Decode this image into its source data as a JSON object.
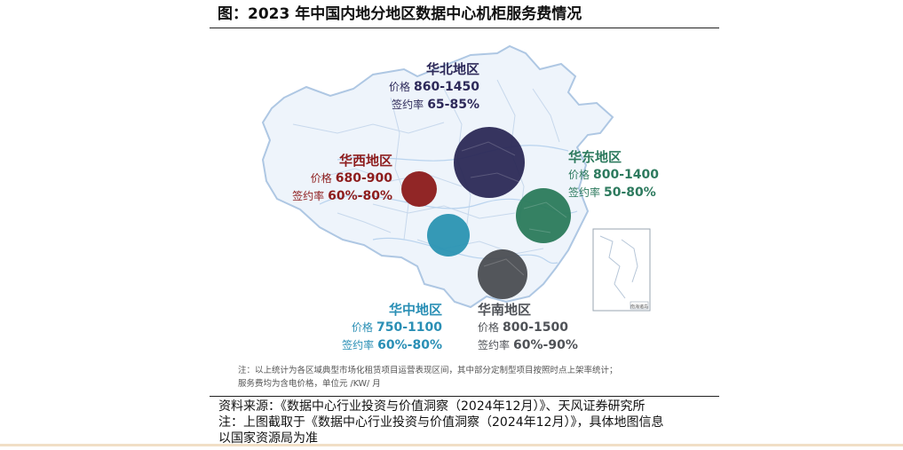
{
  "title": "图：2023 年中国内地分地区数据中心机柜服务费情况",
  "regions": {
    "north": {
      "name": "华北地区",
      "price_key": "价格",
      "price": "860-1450",
      "rate_key": "签约率",
      "rate": "65-85%",
      "color": "#2b2956"
    },
    "west": {
      "name": "华西地区",
      "price_key": "价格",
      "price": "680-900",
      "rate_key": "签约率",
      "rate": "60%-80%",
      "color": "#8b1a1a"
    },
    "east": {
      "name": "华东地区",
      "price_key": "价格",
      "price": "800-1400",
      "rate_key": "签约率",
      "rate": "50-80%",
      "color": "#2a7a5b"
    },
    "central": {
      "name": "华中地区",
      "price_key": "价格",
      "price": "750-1100",
      "rate_key": "签约率",
      "rate": "60%-80%",
      "color": "#2a93b2"
    },
    "south": {
      "name": "华南地区",
      "price_key": "价格",
      "price": "800-1500",
      "rate_key": "签约率",
      "rate": "60%-90%",
      "color": "#4a4d52"
    }
  },
  "inset_label": "南海诸岛",
  "note": {
    "line1": "注：以上统计为各区域典型市场化租赁项目运营表现区间，其中部分定制型项目按照时点上架率统计；",
    "line2": "服务费均为含电价格，单位元 /KW/ 月"
  },
  "source": {
    "line1": "资料来源：《数据中心行业投资与价值洞察（2024年12月）》、天风证券研究所",
    "line2": "注：上图截取于《数据中心行业投资与价值洞察（2024年12月）》，具体地图信息",
    "line3": "以国家资源局为准"
  }
}
